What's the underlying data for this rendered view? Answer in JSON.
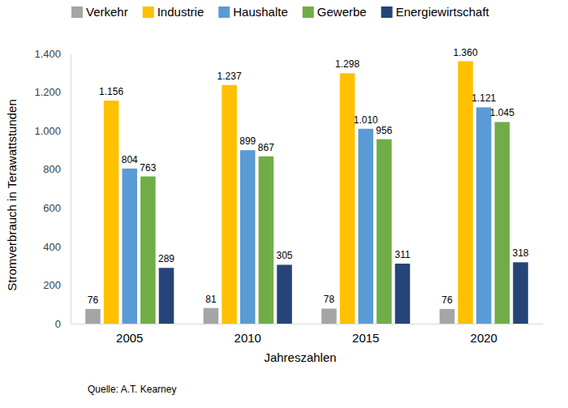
{
  "chart_data": {
    "type": "bar",
    "x_label": "Jahreszahlen",
    "y_label": "Stromverbrauch in Terawattstunden",
    "annotations": [
      "Quelle: A.T. Kearney"
    ],
    "categories": [
      "2005",
      "2010",
      "2015",
      "2020"
    ],
    "series": [
      {
        "name": "Verkehr",
        "color": "#a5a5a5",
        "values": [
          76,
          81,
          78,
          76
        ]
      },
      {
        "name": "Industrie",
        "color": "#ffc000",
        "values": [
          1156,
          1237,
          1298,
          1360
        ],
        "value_labels": [
          "1.156",
          "1.237",
          "1.298",
          "1.360"
        ]
      },
      {
        "name": "Haushalte",
        "color": "#5b9bd5",
        "values": [
          804,
          899,
          1010,
          1121
        ],
        "value_labels": [
          "804",
          "899",
          "1.010",
          "1.121"
        ]
      },
      {
        "name": "Gewerbe",
        "color": "#70ad47",
        "values": [
          763,
          867,
          956,
          1045
        ],
        "value_labels": [
          "763",
          "867",
          "956",
          "1.045"
        ]
      },
      {
        "name": "Energiewirtschaft",
        "color": "#264478",
        "values": [
          289,
          305,
          311,
          318
        ]
      }
    ],
    "ylim": [
      0,
      1400
    ],
    "yticks": [
      0,
      200,
      400,
      600,
      800,
      {
        "value": 1000,
        "label": "1.000"
      },
      {
        "value": 1200,
        "label": "1.200"
      },
      {
        "value": 1400,
        "label": "1.400"
      }
    ],
    "grid": false,
    "legend": "top",
    "data_labels": true
  }
}
